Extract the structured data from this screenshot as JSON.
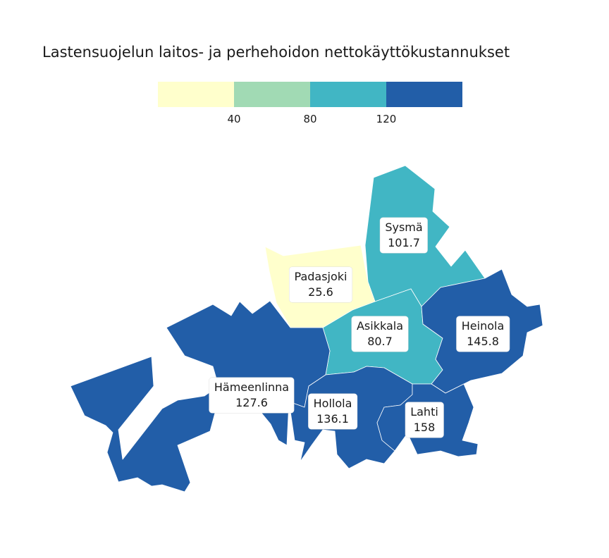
{
  "title": "Lastensuojelun laitos- ja perhehoidon nettokäyttökustannukset",
  "legend": {
    "colors": [
      "#ffffcc",
      "#a1dab4",
      "#41b6c4",
      "#225ea8"
    ],
    "breaks": [
      "40",
      "80",
      "120"
    ]
  },
  "regions": [
    {
      "name": "Sysmä",
      "value": "101.7"
    },
    {
      "name": "Padasjoki",
      "value": "25.6"
    },
    {
      "name": "Asikkala",
      "value": "80.7"
    },
    {
      "name": "Heinola",
      "value": "145.8"
    },
    {
      "name": "Hämeenlinna",
      "value": "127.6"
    },
    {
      "name": "Hollola",
      "value": "136.1"
    },
    {
      "name": "Lahti",
      "value": "158"
    }
  ]
}
